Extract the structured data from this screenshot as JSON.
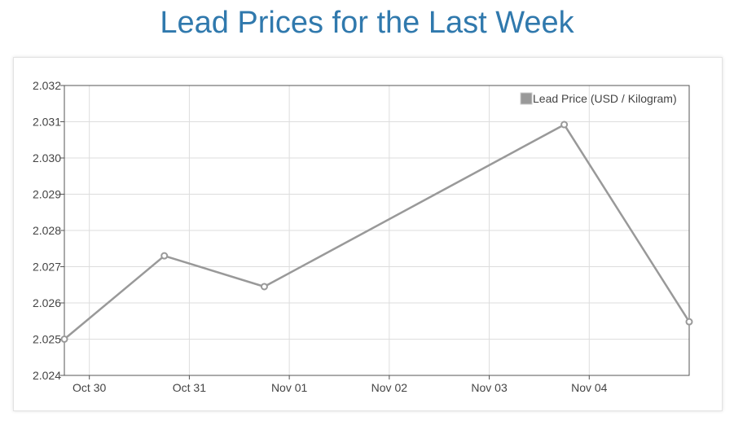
{
  "page": {
    "title": "Lead Prices for the Last Week"
  },
  "chart_data": {
    "type": "line",
    "title": "Lead Prices for the Last Week",
    "xlabel": "",
    "ylabel": "",
    "ylim": [
      2.024,
      2.032
    ],
    "xlim": [
      "2023-10-29 18:00",
      "2023-11-05 00:00"
    ],
    "y_ticks": [
      "2.024",
      "2.025",
      "2.026",
      "2.027",
      "2.028",
      "2.029",
      "2.030",
      "2.031",
      "2.032"
    ],
    "x_ticks": [
      {
        "label": "Oct 30",
        "date": "2023-10-30 00:00"
      },
      {
        "label": "Oct 31",
        "date": "2023-10-31 00:00"
      },
      {
        "label": "Nov 01",
        "date": "2023-11-01 00:00"
      },
      {
        "label": "Nov 02",
        "date": "2023-11-02 00:00"
      },
      {
        "label": "Nov 03",
        "date": "2023-11-03 00:00"
      },
      {
        "label": "Nov 04",
        "date": "2023-11-04 00:00"
      }
    ],
    "series": [
      {
        "name": "Lead Price (USD / Kilogram)",
        "color": "#999999",
        "points": [
          {
            "x": "2023-10-29 18:00",
            "y": 2.025
          },
          {
            "x": "2023-10-30 18:00",
            "y": 2.0273
          },
          {
            "x": "2023-10-31 18:00",
            "y": 2.02645
          },
          {
            "x": "2023-11-03 18:00",
            "y": 2.03092
          },
          {
            "x": "2023-11-05 00:00",
            "y": 2.02548
          }
        ]
      }
    ],
    "grid": true,
    "legend": "top-right"
  }
}
